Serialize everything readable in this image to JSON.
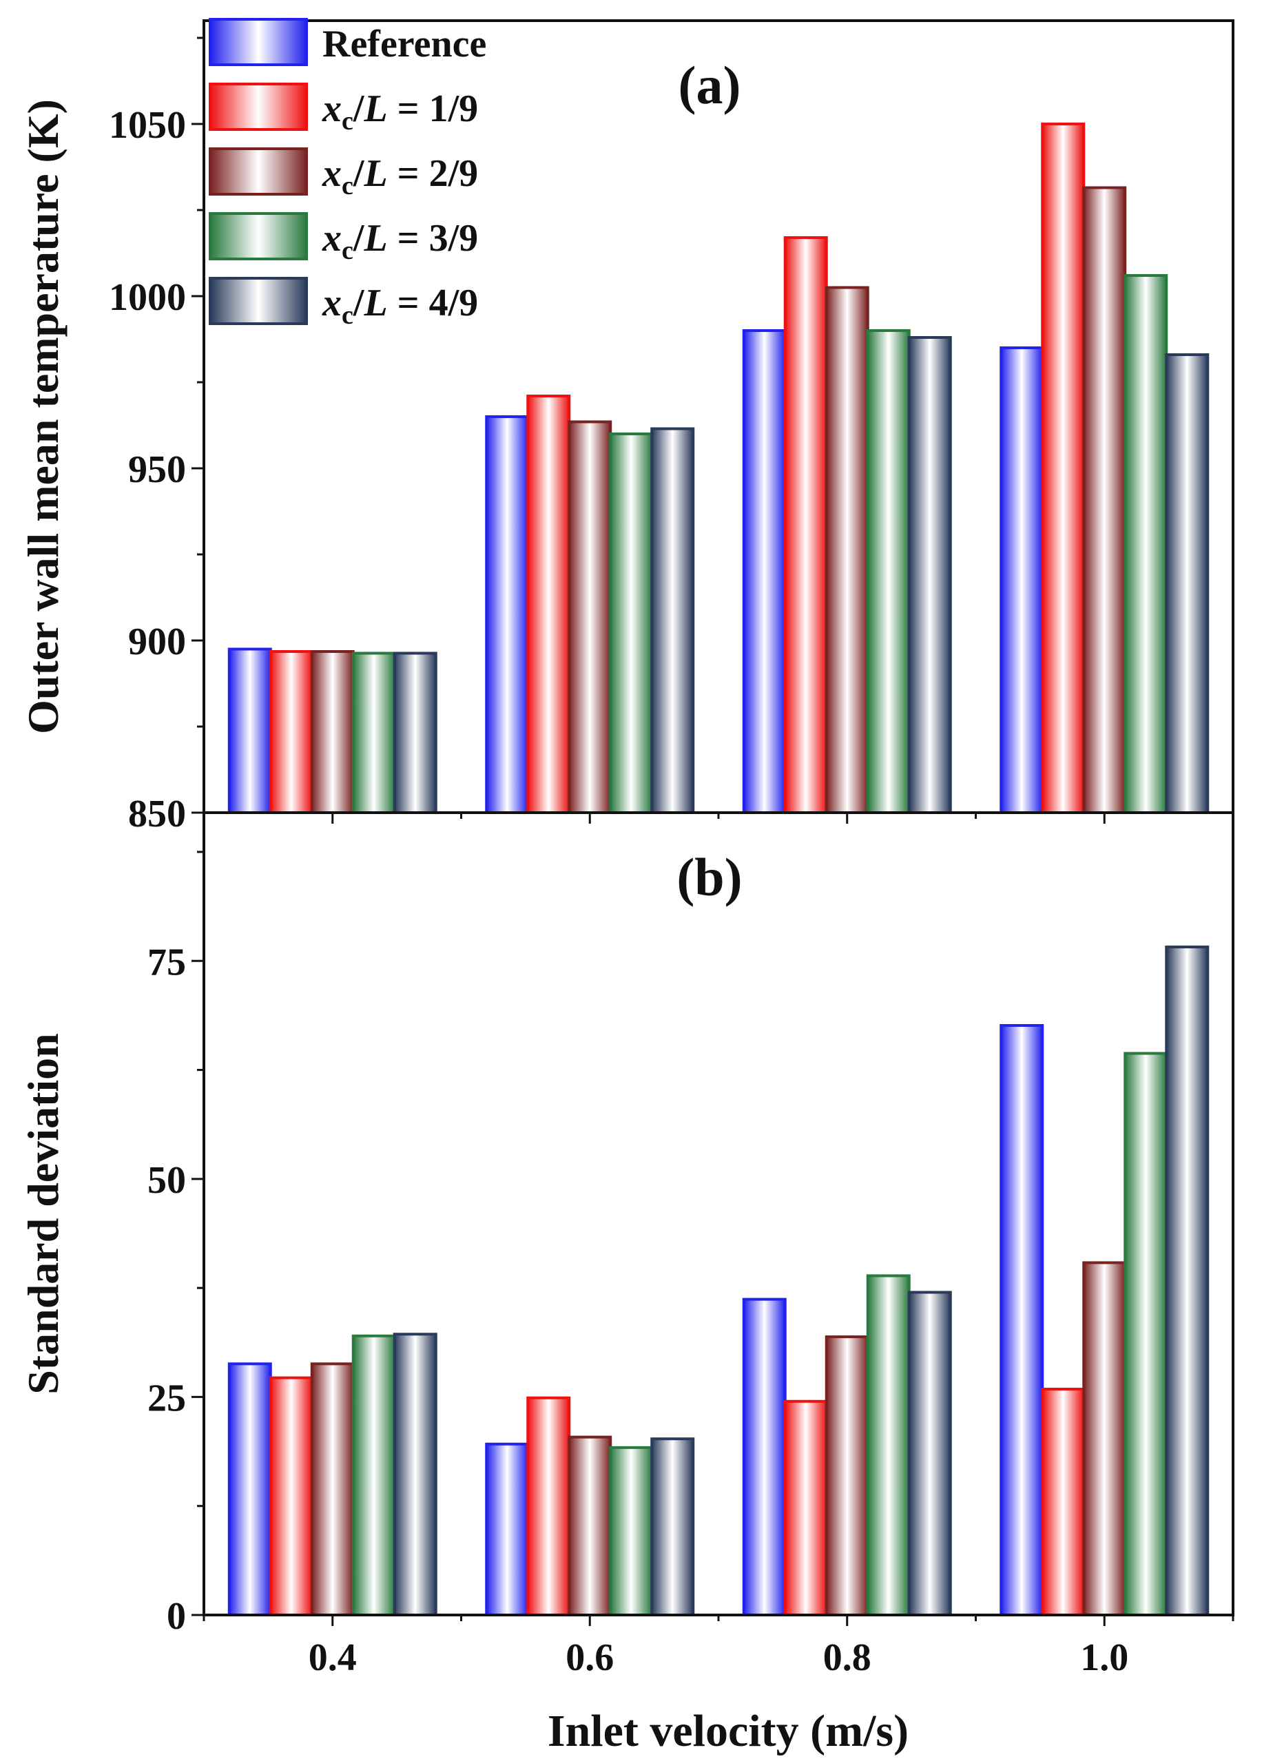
{
  "chart_data": [
    {
      "type": "bar",
      "panel_label": "(a)",
      "ylabel": "Outer wall mean temperature (K)",
      "ylim": [
        850,
        1080
      ],
      "yticks": [
        850,
        900,
        950,
        1000,
        1050
      ],
      "categories": [
        "0.4",
        "0.6",
        "0.8",
        "1.0"
      ],
      "series": [
        {
          "name": "Reference",
          "values": [
            897.5,
            965.0,
            990.0,
            985.0
          ]
        },
        {
          "name": "xc/L = 1/9",
          "values": [
            896.8,
            971.0,
            1017.0,
            1050.0
          ]
        },
        {
          "name": "xc/L = 2/9",
          "values": [
            896.8,
            963.5,
            1002.5,
            1031.5
          ]
        },
        {
          "name": "xc/L = 3/9",
          "values": [
            896.3,
            960.0,
            990.0,
            1006.0
          ]
        },
        {
          "name": "xc/L = 4/9",
          "values": [
            896.3,
            961.5,
            988.0,
            983.0
          ]
        }
      ]
    },
    {
      "type": "bar",
      "panel_label": "(b)",
      "ylabel": "Standard deviation",
      "ylim": [
        0,
        92
      ],
      "yticks": [
        0,
        25,
        50,
        75
      ],
      "categories": [
        "0.4",
        "0.6",
        "0.8",
        "1.0"
      ],
      "xlabel": "Inlet velocity (m/s)",
      "series": [
        {
          "name": "Reference",
          "values": [
            28.8,
            19.6,
            36.2,
            67.6
          ]
        },
        {
          "name": "xc/L = 1/9",
          "values": [
            27.2,
            24.9,
            24.5,
            25.9
          ]
        },
        {
          "name": "xc/L = 2/9",
          "values": [
            28.8,
            20.4,
            31.9,
            40.4
          ]
        },
        {
          "name": "xc/L = 3/9",
          "values": [
            32.0,
            19.2,
            38.9,
            64.4
          ]
        },
        {
          "name": "xc/L = 4/9",
          "values": [
            32.2,
            20.2,
            37.0,
            76.6
          ]
        }
      ]
    }
  ],
  "legend": [
    {
      "pre": "Reference",
      "sub": "",
      "post": ""
    },
    {
      "pre": "x",
      "sub": "c",
      "post": "/L = 1/9"
    },
    {
      "pre": "x",
      "sub": "c",
      "post": "/L = 2/9"
    },
    {
      "pre": "x",
      "sub": "c",
      "post": "/L = 3/9"
    },
    {
      "pre": "x",
      "sub": "c",
      "post": "/L = 4/9"
    }
  ],
  "colors": [
    "#2222ee",
    "#ee1111",
    "#7a2222",
    "#2a7a40",
    "#2a3a5a"
  ]
}
